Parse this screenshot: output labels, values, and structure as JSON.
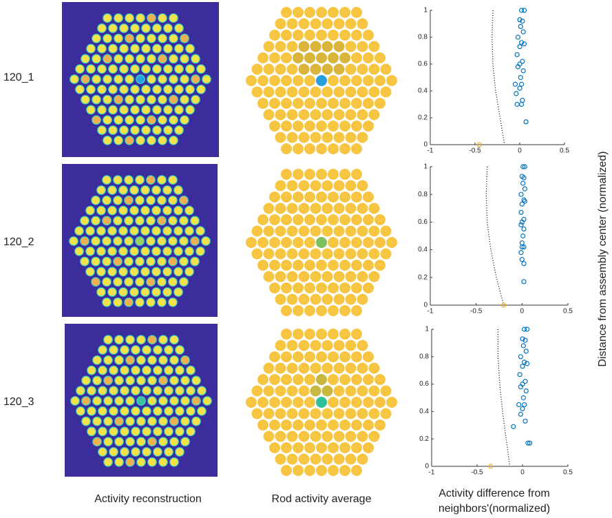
{
  "row_labels": [
    "120_1",
    "120_2",
    "120_3"
  ],
  "column_labels": [
    "Activity reconstruction",
    "Rod activity average"
  ],
  "x_label": "Activity difference from neighbors'(normalized)",
  "y_label": "Distance from assembly center (normalized)",
  "chart_data": [
    {
      "type": "scatter",
      "xlim": [
        -1,
        0.5
      ],
      "xticks": [
        -1,
        -0.5,
        0,
        0.5
      ],
      "ylim": [
        0,
        1
      ],
      "yticks": [
        0,
        0.2,
        0.4,
        0.6,
        0.8,
        1
      ],
      "series": [
        {
          "style": "dotted",
          "color": "#000000",
          "x": [
            -0.3,
            -0.31,
            -0.3,
            -0.27,
            -0.22,
            -0.17
          ],
          "values": [
            1,
            0.8,
            0.6,
            0.4,
            0.2,
            0
          ]
        },
        {
          "style": "open-circle",
          "color": "#0072bd",
          "x": [
            0.02,
            0.05,
            0.0,
            0.03,
            0.01,
            0.04,
            -0.02,
            0.02,
            0.05,
            0.0,
            -0.03,
            0.03,
            0.0,
            -0.02,
            0.04,
            0.01,
            -0.05,
            0.02,
            0.0,
            -0.04,
            0.03,
            0.02,
            0.07,
            -0.03
          ],
          "values": [
            1,
            1,
            0.93,
            0.92,
            0.88,
            0.84,
            0.8,
            0.76,
            0.75,
            0.73,
            0.67,
            0.62,
            0.6,
            0.58,
            0.55,
            0.5,
            0.45,
            0.45,
            0.42,
            0.38,
            0.33,
            0.3,
            0.17,
            0.3
          ]
        },
        {
          "style": "open-circle",
          "color": "#edb120",
          "x": [
            -0.45
          ],
          "values": [
            0
          ]
        }
      ]
    },
    {
      "type": "scatter",
      "xlim": [
        -1,
        0.5
      ],
      "xticks": [
        -1,
        -0.5,
        0,
        0.5
      ],
      "ylim": [
        0,
        1
      ],
      "yticks": [
        0,
        0.2,
        0.4,
        0.6,
        0.8,
        1
      ],
      "series": [
        {
          "style": "dotted",
          "color": "#000000",
          "x": [
            -0.38,
            -0.39,
            -0.38,
            -0.34,
            -0.28,
            -0.2
          ],
          "values": [
            1,
            0.8,
            0.6,
            0.4,
            0.2,
            0
          ]
        },
        {
          "style": "open-circle",
          "color": "#0072bd",
          "x": [
            0.01,
            0.03,
            0.0,
            0.02,
            0.01,
            0.03,
            -0.01,
            0.02,
            0.03,
            0.0,
            -0.01,
            0.02,
            0.0,
            -0.01,
            0.02,
            0.01,
            0.0,
            0.02,
            0.0,
            -0.01,
            0.0,
            0.02,
            0.02
          ],
          "values": [
            1,
            1,
            0.93,
            0.92,
            0.88,
            0.84,
            0.8,
            0.76,
            0.75,
            0.73,
            0.67,
            0.62,
            0.6,
            0.58,
            0.55,
            0.5,
            0.45,
            0.42,
            0.42,
            0.38,
            0.33,
            0.3,
            0.17
          ]
        },
        {
          "style": "open-circle",
          "color": "#edb120",
          "x": [
            -0.2
          ],
          "values": [
            0
          ]
        }
      ]
    },
    {
      "type": "scatter",
      "xlim": [
        -1,
        0.5
      ],
      "xticks": [
        -1,
        -0.5,
        0,
        0.5
      ],
      "ylim": [
        0,
        1
      ],
      "yticks": [
        0,
        0.2,
        0.4,
        0.6,
        0.8,
        1
      ],
      "series": [
        {
          "style": "dotted",
          "color": "#000000",
          "x": [
            -0.27,
            -0.27,
            -0.25,
            -0.22,
            -0.18,
            -0.14
          ],
          "values": [
            1,
            0.8,
            0.6,
            0.4,
            0.2,
            0
          ]
        },
        {
          "style": "open-circle",
          "color": "#0072bd",
          "x": [
            0.02,
            0.05,
            0.0,
            0.03,
            0.01,
            0.04,
            -0.02,
            0.02,
            0.05,
            0.0,
            -0.03,
            0.03,
            0.0,
            -0.02,
            0.04,
            0.01,
            -0.04,
            0.02,
            0.0,
            -0.02,
            0.03,
            -0.1,
            0.08,
            0.06
          ],
          "values": [
            1,
            1,
            0.93,
            0.92,
            0.88,
            0.84,
            0.8,
            0.76,
            0.75,
            0.73,
            0.67,
            0.62,
            0.6,
            0.58,
            0.55,
            0.5,
            0.45,
            0.45,
            0.42,
            0.38,
            0.33,
            0.29,
            0.17,
            0.17
          ]
        },
        {
          "style": "open-circle",
          "color": "#edb120",
          "x": [
            -0.35
          ],
          "values": [
            0
          ]
        }
      ]
    }
  ]
}
